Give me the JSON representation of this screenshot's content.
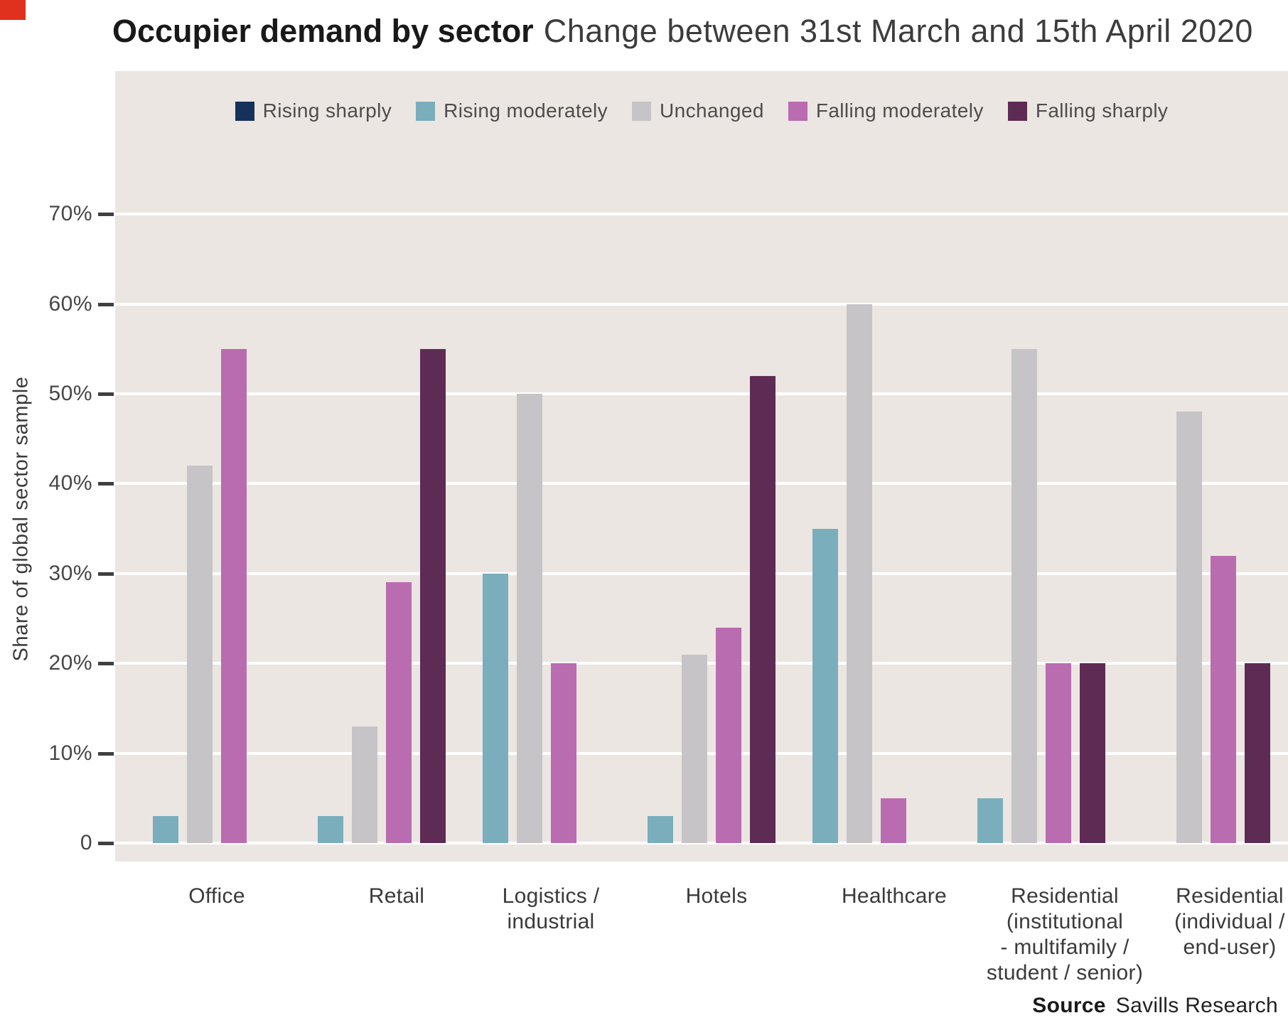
{
  "page": {
    "accent_corner_color": "#e0301e",
    "background": "#ffffff"
  },
  "title": {
    "bold": "Occupier demand by sector",
    "regular": "Change between 31st March and 15th April 2020"
  },
  "y_axis": {
    "title": "Share of global sector sample",
    "tick_labels": [
      "70%",
      "60%",
      "50%",
      "40%",
      "30%",
      "20%",
      "10%",
      "0"
    ],
    "tick_values": [
      70,
      60,
      50,
      40,
      30,
      20,
      10,
      0
    ]
  },
  "source": {
    "label": "Source",
    "value": "Savills Research"
  },
  "chart_data": {
    "type": "bar",
    "title": "Occupier demand by sector — Change between 31st March and 15th April 2020",
    "categories": [
      "Office",
      "Retail",
      "Logistics /\nindustrial",
      "Hotels",
      "Healthcare",
      "Residential\n(institutional\n- multifamily /\nstudent / senior)",
      "Residential\n(individual /\nend-user)"
    ],
    "series": [
      {
        "name": "Rising sharply",
        "color": "#16325a",
        "values": [
          0,
          0,
          0,
          0,
          0,
          0,
          0
        ]
      },
      {
        "name": "Rising moderately",
        "color": "#7aaebc",
        "values": [
          3,
          3,
          30,
          3,
          35,
          5,
          0
        ]
      },
      {
        "name": "Unchanged",
        "color": "#c7c4c7",
        "values": [
          42,
          13,
          50,
          21,
          60,
          55,
          48
        ]
      },
      {
        "name": "Falling moderately",
        "color": "#b96cb0",
        "values": [
          55,
          29,
          20,
          24,
          5,
          20,
          32
        ]
      },
      {
        "name": "Falling sharply",
        "color": "#5e2b55",
        "values": [
          0,
          55,
          0,
          52,
          0,
          20,
          20
        ]
      }
    ],
    "xlabel": "",
    "ylabel": "Share of global sector sample",
    "ylim": [
      0,
      70
    ],
    "grid": true,
    "legend_position": "top",
    "plot_background": "#ebe6e1",
    "gridline_color": "#ffffff"
  }
}
